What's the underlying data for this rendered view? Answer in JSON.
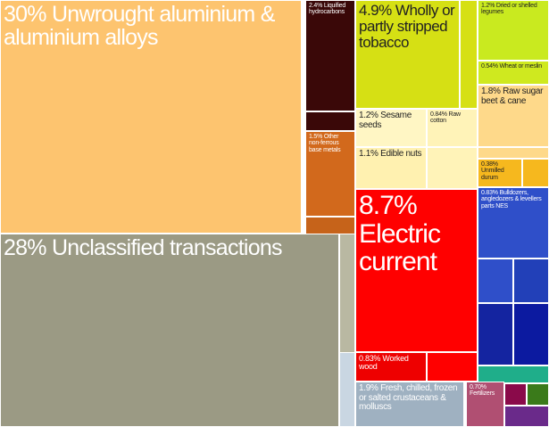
{
  "chart_data": {
    "type": "treemap",
    "labels": [
      "30% Unwrought aluminium & aluminium alloys",
      "28% Unclassified transactions",
      "8.7% Electric current",
      "4.9% Wholly or partly stripped tobacco",
      "2.4% Liquified hydrocarbons",
      "1.5% Other non-ferrous base metals",
      "1.2% Sesame seeds",
      "0.84% Raw cotton",
      "1.1% Edible nuts",
      "1.2% Dried or shelled legumes",
      "0.54% Wheat or meslin",
      "1.8% Raw sugar beet & cane",
      "0.38% Unmilled durum",
      "0.83% Bulldozers, angledozers & levellers parts NES",
      "0.83% Worked wood",
      "1.9% Fresh, chilled, frozen or salted crustaceans & molluscs",
      "0.70% Fertilizers"
    ],
    "values": [
      30,
      28,
      8.7,
      4.9,
      2.4,
      1.5,
      1.2,
      0.84,
      1.1,
      1.2,
      0.54,
      1.8,
      0.38,
      0.83,
      0.83,
      1.9,
      0.7
    ],
    "colors": [
      "#fdc46f",
      "#9b9a84",
      "#ff0000",
      "#d6e014",
      "#3a0808",
      "#d2691c",
      "#fff6c4",
      "#fff3b8",
      "#fff1b0",
      "#c9ea1f",
      "#cfe91f",
      "#fed98a",
      "#f6b81e",
      "#2f4fc9",
      "#ee0000",
      "#9fb1c1",
      "#b04f72"
    ]
  }
}
